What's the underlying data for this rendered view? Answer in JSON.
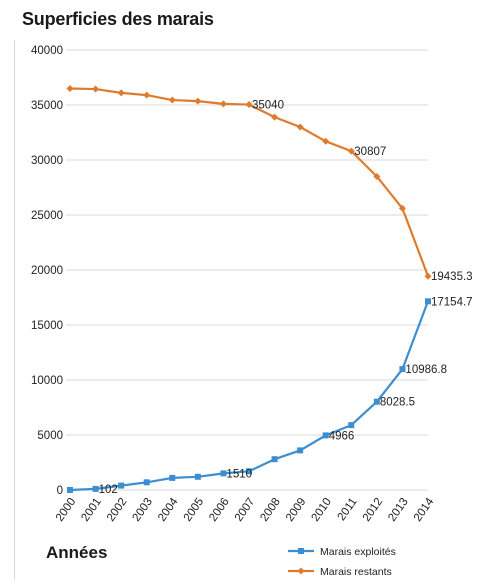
{
  "chart_data": {
    "type": "line",
    "title": "Superficies des marais",
    "xlabel": "Années",
    "ylabel": "",
    "x": [
      "2000",
      "2001",
      "2002",
      "2003",
      "2004",
      "2005",
      "2006",
      "2007",
      "2008",
      "2009",
      "2010",
      "2011",
      "2012",
      "2013",
      "2014"
    ],
    "ylim": [
      0,
      40000
    ],
    "yticks": [
      0,
      5000,
      10000,
      15000,
      20000,
      25000,
      30000,
      35000,
      40000
    ],
    "grid": true,
    "legend_position": "bottom-right",
    "series": [
      {
        "name": "Marais exploités",
        "color": "#3b8fd0",
        "values": [
          0,
          102,
          400,
          700,
          1100,
          1200,
          1510,
          1700,
          2800,
          3600,
          4966,
          5900,
          8028.5,
          10986.8,
          17154.7
        ],
        "labels": [
          {
            "index": 1,
            "text": "102"
          },
          {
            "index": 6,
            "text": "1510"
          },
          {
            "index": 10,
            "text": "4966"
          },
          {
            "index": 12,
            "text": "8028.5"
          },
          {
            "index": 13,
            "text": "10986.8"
          },
          {
            "index": 14,
            "text": "17154.7"
          }
        ]
      },
      {
        "name": "Marais restants",
        "color": "#e07b2e",
        "values": [
          36500,
          36450,
          36100,
          35900,
          35450,
          35350,
          35100,
          35040,
          33900,
          33000,
          31700,
          30807,
          28500,
          25600,
          19435.3
        ],
        "labels": [
          {
            "index": 7,
            "text": "35040"
          },
          {
            "index": 11,
            "text": "30807"
          },
          {
            "index": 14,
            "text": "19435.3"
          }
        ]
      }
    ]
  }
}
